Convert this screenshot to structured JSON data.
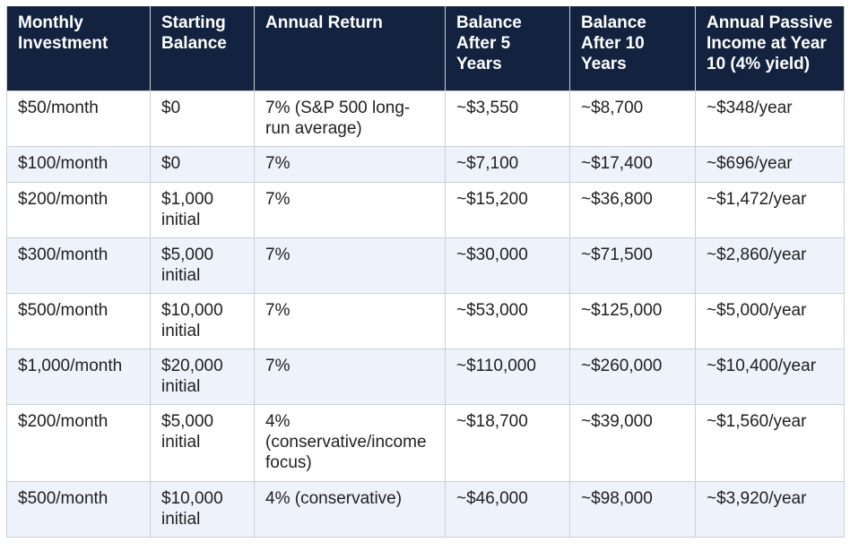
{
  "table": {
    "headers": [
      "Monthly Investment",
      "Starting Balance",
      "Annual Return",
      "Balance After 5 Years",
      "Balance After 10 Years",
      "Annual Passive Income at Year 10 (4% yield)"
    ],
    "rows": [
      [
        "$50/month",
        "$0",
        "7% (S&P 500 long-run average)",
        "~$3,550",
        "~$8,700",
        "~$348/year"
      ],
      [
        "$100/month",
        "$0",
        "7%",
        "~$7,100",
        "~$17,400",
        "~$696/year"
      ],
      [
        "$200/month",
        "$1,000 initial",
        "7%",
        "~$15,200",
        "~$36,800",
        "~$1,472/year"
      ],
      [
        "$300/month",
        "$5,000 initial",
        "7%",
        "~$30,000",
        "~$71,500",
        "~$2,860/year"
      ],
      [
        "$500/month",
        "$10,000 initial",
        "7%",
        "~$53,000",
        "~$125,000",
        "~$5,000/year"
      ],
      [
        "$1,000/month",
        "$20,000 initial",
        "7%",
        "~$110,000",
        "~$260,000",
        "~$10,400/year"
      ],
      [
        "$200/month",
        "$5,000 initial",
        "4% (conservative/income focus)",
        "~$18,700",
        "~$39,000",
        "~$1,560/year"
      ],
      [
        "$500/month",
        "$10,000 initial",
        "4% (conservative)",
        "~$46,000",
        "~$98,000",
        "~$3,920/year"
      ]
    ]
  },
  "colors": {
    "header_bg": "#13233f",
    "header_text": "#ffffff",
    "row_alt_bg": "#eef3fb",
    "border": "#c9cfd9",
    "body_text": "#1f1f1f"
  }
}
